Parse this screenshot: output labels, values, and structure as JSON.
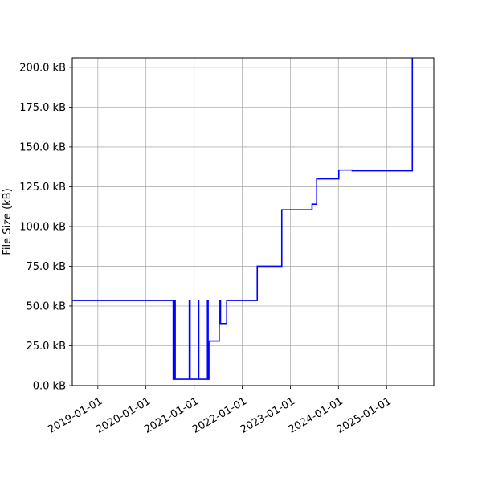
{
  "chart_data": {
    "type": "line",
    "title": "",
    "xlabel": "",
    "ylabel": "File Size (kB)",
    "grid": true,
    "x_axis": {
      "type": "date",
      "range": [
        "2018-06-21",
        "2025-12-25"
      ],
      "ticks": [
        "2019-01-01",
        "2020-01-01",
        "2021-01-01",
        "2022-01-01",
        "2023-01-01",
        "2024-01-01",
        "2025-01-01"
      ],
      "tick_labels": [
        "2019-01-01",
        "2020-01-01",
        "2021-01-01",
        "2022-01-01",
        "2023-01-01",
        "2024-01-01",
        "2025-01-01"
      ]
    },
    "y_axis": {
      "range": [
        0,
        206
      ],
      "ticks": [
        0,
        25,
        50,
        75,
        100,
        125,
        150,
        175,
        200
      ],
      "tick_labels": [
        "0.0 kB",
        "25.0 kB",
        "50.0 kB",
        "75.0 kB",
        "100.0 kB",
        "125.0 kB",
        "150.0 kB",
        "175.0 kB",
        "200.0 kB"
      ]
    },
    "series": [
      {
        "color": "#0000ff",
        "step": "post",
        "x": [
          "2018-06-21",
          "2020-07-26",
          "2020-08-01",
          "2020-08-10",
          "2020-08-15",
          "2020-10-01",
          "2020-11-25",
          "2020-12-01",
          "2021-02-01",
          "2021-02-05",
          "2021-04-12",
          "2021-04-17",
          "2021-04-23",
          "2021-07-10",
          "2021-07-20",
          "2021-09-05",
          "2021-09-12",
          "2022-04-25",
          "2022-10-28",
          "2023-06-15",
          "2023-07-20",
          "2024-01-04",
          "2024-04-15",
          "2025-07-15"
        ],
        "y": [
          53.5,
          4,
          53.5,
          4,
          4,
          4,
          53.5,
          4,
          53.5,
          4,
          53.5,
          4,
          28,
          53.5,
          39,
          53.5,
          53.5,
          75,
          110.5,
          114,
          130,
          135.5,
          135,
          206
        ]
      }
    ]
  }
}
